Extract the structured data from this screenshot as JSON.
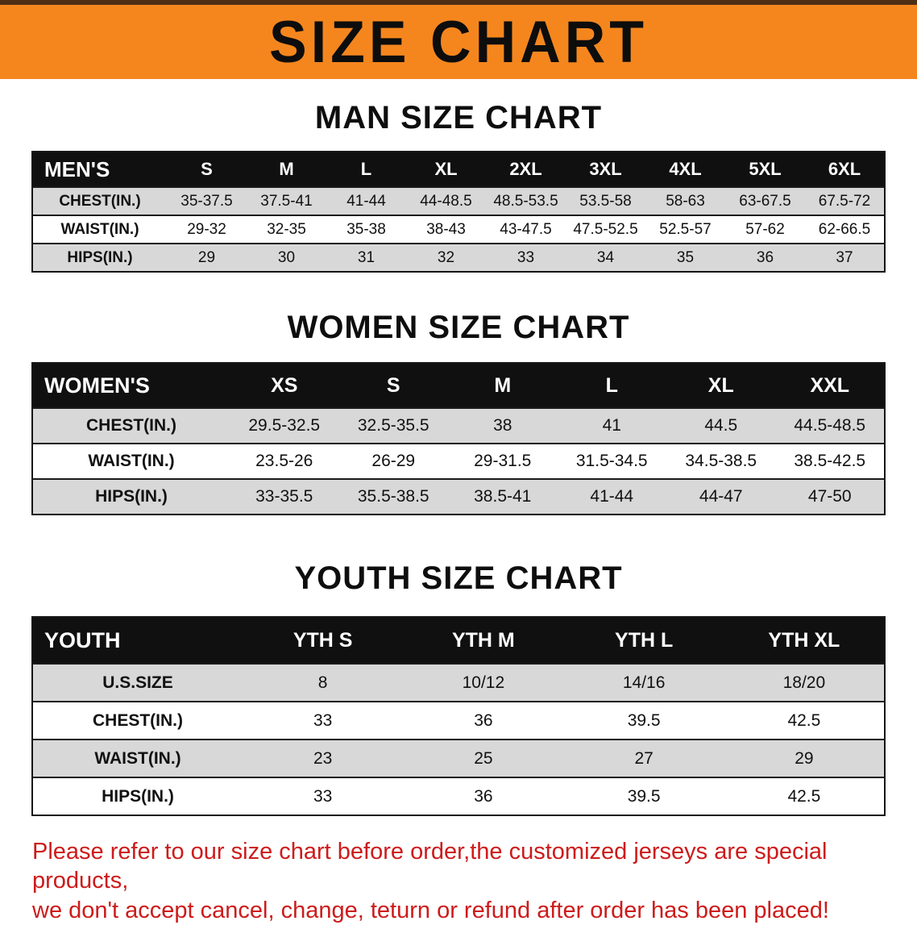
{
  "banner": {
    "title": "SIZE CHART",
    "bg_color": "#f5861e",
    "text_color": "#0d0d0d"
  },
  "sections": [
    {
      "heading": "MAN SIZE CHART",
      "table": {
        "header": [
          "MEN'S",
          "S",
          "M",
          "L",
          "XL",
          "2XL",
          "3XL",
          "4XL",
          "5XL",
          "6XL"
        ],
        "rows": [
          [
            "CHEST(IN.)",
            "35-37.5",
            "37.5-41",
            "41-44",
            "44-48.5",
            "48.5-53.5",
            "53.5-58",
            "58-63",
            "63-67.5",
            "67.5-72"
          ],
          [
            "WAIST(IN.)",
            "29-32",
            "32-35",
            "35-38",
            "38-43",
            "43-47.5",
            "47.5-52.5",
            "52.5-57",
            "57-62",
            "62-66.5"
          ],
          [
            "HIPS(IN.)",
            "29",
            "30",
            "31",
            "32",
            "33",
            "34",
            "35",
            "36",
            "37"
          ]
        ]
      }
    },
    {
      "heading": "WOMEN SIZE CHART",
      "table": {
        "header": [
          "WOMEN'S",
          "XS",
          "S",
          "M",
          "L",
          "XL",
          "XXL"
        ],
        "rows": [
          [
            "CHEST(IN.)",
            "29.5-32.5",
            "32.5-35.5",
            "38",
            "41",
            "44.5",
            "44.5-48.5"
          ],
          [
            "WAIST(IN.)",
            "23.5-26",
            "26-29",
            "29-31.5",
            "31.5-34.5",
            "34.5-38.5",
            "38.5-42.5"
          ],
          [
            "HIPS(IN.)",
            "33-35.5",
            "35.5-38.5",
            "38.5-41",
            "41-44",
            "44-47",
            "47-50"
          ]
        ]
      }
    },
    {
      "heading": "YOUTH SIZE CHART",
      "table": {
        "header": [
          "YOUTH",
          "YTH S",
          "YTH M",
          "YTH L",
          "YTH XL"
        ],
        "rows": [
          [
            "U.S.SIZE",
            "8",
            "10/12",
            "14/16",
            "18/20"
          ],
          [
            "CHEST(IN.)",
            "33",
            "36",
            "39.5",
            "42.5"
          ],
          [
            "WAIST(IN.)",
            "23",
            "25",
            "27",
            "29"
          ],
          [
            "HIPS(IN.)",
            "33",
            "36",
            "39.5",
            "42.5"
          ]
        ]
      }
    }
  ],
  "disclaimer": {
    "line1": "Please refer to our size chart before order,the customized jerseys are special products,",
    "line2": "we don't accept cancel, change, teturn or refund after order has been placed!",
    "color": "#cd1b1b"
  }
}
